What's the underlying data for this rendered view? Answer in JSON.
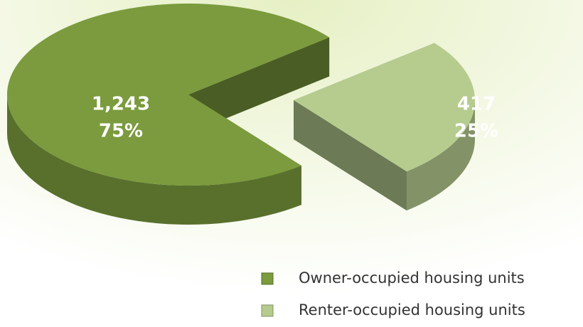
{
  "chart_data": {
    "type": "pie",
    "categories": [
      "Owner-occupied housing units",
      "Renter-occupied housing units"
    ],
    "values": [
      1243,
      417
    ],
    "value_labels": [
      "1,243",
      "417"
    ],
    "percent_labels": [
      "75%",
      "25%"
    ],
    "colors": [
      "#7b9b3e",
      "#b6cc8f"
    ],
    "legend": "bottom-right"
  }
}
